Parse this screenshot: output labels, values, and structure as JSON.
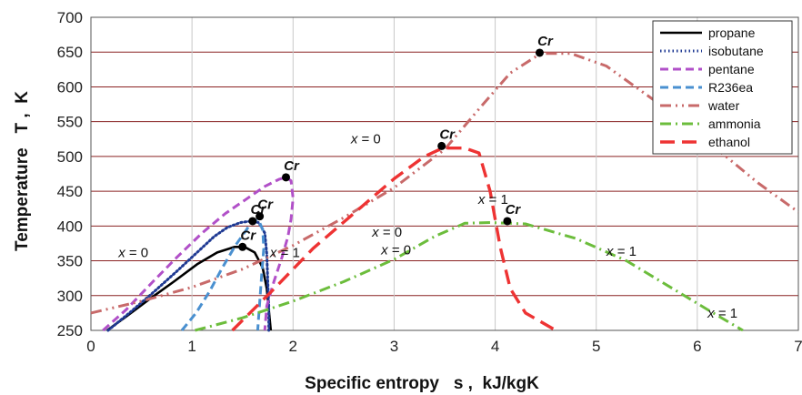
{
  "chart_data": {
    "type": "line",
    "xlabel": "Specific entropy   s ,  kJ/kgK",
    "ylabel": "Temperature   T ,  K",
    "xlim": [
      0,
      7
    ],
    "ylim": [
      250,
      700
    ],
    "x_ticks": [
      0,
      1,
      2,
      3,
      4,
      5,
      6,
      7
    ],
    "y_ticks": [
      250,
      300,
      350,
      400,
      450,
      500,
      550,
      600,
      650,
      700
    ],
    "grid": true,
    "legend_position": "top-right",
    "series": [
      {
        "name": "propane",
        "color": "#000000",
        "dash": "solid",
        "points": [
          [
            0.16,
            250
          ],
          [
            0.35,
            270
          ],
          [
            0.58,
            295
          ],
          [
            0.82,
            320
          ],
          [
            1.05,
            345
          ],
          [
            1.25,
            362
          ],
          [
            1.42,
            370
          ],
          [
            1.52,
            370
          ],
          [
            1.62,
            362
          ],
          [
            1.7,
            340
          ],
          [
            1.74,
            310
          ],
          [
            1.76,
            280
          ],
          [
            1.78,
            250
          ]
        ]
      },
      {
        "name": "isobutane",
        "color": "#1f3a93",
        "dash": "dotted",
        "points": [
          [
            0.17,
            250
          ],
          [
            0.38,
            275
          ],
          [
            0.62,
            305
          ],
          [
            0.85,
            335
          ],
          [
            1.05,
            362
          ],
          [
            1.22,
            385
          ],
          [
            1.35,
            398
          ],
          [
            1.48,
            405
          ],
          [
            1.58,
            407
          ],
          [
            1.66,
            405
          ],
          [
            1.72,
            390
          ],
          [
            1.74,
            360
          ],
          [
            1.75,
            320
          ],
          [
            1.76,
            285
          ],
          [
            1.76,
            250
          ]
        ]
      },
      {
        "name": "pentane",
        "color": "#b150c8",
        "dash": "dash",
        "points": [
          [
            0.12,
            250
          ],
          [
            0.35,
            280
          ],
          [
            0.6,
            318
          ],
          [
            0.85,
            355
          ],
          [
            1.1,
            390
          ],
          [
            1.33,
            418
          ],
          [
            1.55,
            440
          ],
          [
            1.72,
            457
          ],
          [
            1.86,
            467
          ],
          [
            1.93,
            470
          ],
          [
            1.98,
            465
          ],
          [
            2.0,
            440
          ],
          [
            1.98,
            410
          ],
          [
            1.95,
            385
          ],
          [
            1.89,
            355
          ],
          [
            1.81,
            320
          ],
          [
            1.74,
            285
          ],
          [
            1.72,
            250
          ]
        ]
      },
      {
        "name": "R236ea",
        "color": "#4a90d0",
        "dash": "dash",
        "points": [
          [
            0.9,
            250
          ],
          [
            1.04,
            275
          ],
          [
            1.17,
            305
          ],
          [
            1.3,
            340
          ],
          [
            1.43,
            372
          ],
          [
            1.54,
            395
          ],
          [
            1.6,
            408
          ],
          [
            1.66,
            408
          ],
          [
            1.7,
            395
          ],
          [
            1.71,
            368
          ],
          [
            1.69,
            330
          ],
          [
            1.67,
            290
          ],
          [
            1.65,
            250
          ]
        ]
      },
      {
        "name": "water",
        "color": "#c86a6a",
        "dash": "dashdotdot",
        "points": [
          [
            0,
            275
          ],
          [
            0.5,
            292
          ],
          [
            1.0,
            312
          ],
          [
            1.5,
            338
          ],
          [
            2.0,
            372
          ],
          [
            2.5,
            412
          ],
          [
            3.0,
            455
          ],
          [
            3.5,
            510
          ],
          [
            3.85,
            570
          ],
          [
            4.15,
            620
          ],
          [
            4.45,
            648
          ],
          [
            4.75,
            648
          ],
          [
            5.1,
            630
          ],
          [
            5.6,
            578
          ],
          [
            6.1,
            522
          ],
          [
            6.6,
            462
          ],
          [
            7.0,
            420
          ]
        ]
      },
      {
        "name": "ammonia",
        "color": "#6cbd3c",
        "dash": "dashdot",
        "points": [
          [
            1.03,
            250
          ],
          [
            1.5,
            268
          ],
          [
            2.0,
            292
          ],
          [
            2.5,
            320
          ],
          [
            3.0,
            352
          ],
          [
            3.4,
            385
          ],
          [
            3.7,
            404
          ],
          [
            3.95,
            405
          ],
          [
            4.3,
            403
          ],
          [
            4.8,
            382
          ],
          [
            5.3,
            350
          ],
          [
            5.7,
            315
          ],
          [
            6.1,
            280
          ],
          [
            6.45,
            250
          ]
        ]
      },
      {
        "name": "ethanol",
        "color": "#ee3333",
        "dash": "longdash",
        "points": [
          [
            1.4,
            250
          ],
          [
            1.8,
            308
          ],
          [
            2.2,
            368
          ],
          [
            2.6,
            418
          ],
          [
            3.0,
            468
          ],
          [
            3.3,
            500
          ],
          [
            3.48,
            512
          ],
          [
            3.7,
            512
          ],
          [
            3.84,
            505
          ],
          [
            3.95,
            450
          ],
          [
            4.05,
            370
          ],
          [
            4.15,
            310
          ],
          [
            4.3,
            275
          ],
          [
            4.6,
            250
          ]
        ]
      }
    ],
    "critical_points": [
      {
        "x": 1.5,
        "y": 370,
        "label": "Cr"
      },
      {
        "x": 1.6,
        "y": 407,
        "label": "Cr"
      },
      {
        "x": 1.67,
        "y": 414,
        "label": "Cr"
      },
      {
        "x": 1.93,
        "y": 470,
        "label": "Cr"
      },
      {
        "x": 3.47,
        "y": 515,
        "label": "Cr"
      },
      {
        "x": 4.44,
        "y": 649,
        "label": "Cr"
      },
      {
        "x": 4.12,
        "y": 407,
        "label": "Cr"
      }
    ],
    "annotations": [
      {
        "text": "x = 0",
        "x": 0.42,
        "y": 355
      },
      {
        "text": "x = 1",
        "x": 1.92,
        "y": 355
      },
      {
        "text": "x = 0",
        "x": 2.72,
        "y": 519
      },
      {
        "text": "x = 0",
        "x": 2.93,
        "y": 385
      },
      {
        "text": "x = 1",
        "x": 3.98,
        "y": 432
      },
      {
        "text": "x = 0",
        "x": 3.02,
        "y": 359
      },
      {
        "text": "x = 1",
        "x": 5.25,
        "y": 357
      },
      {
        "text": "x = 1",
        "x": 6.25,
        "y": 268
      }
    ]
  }
}
